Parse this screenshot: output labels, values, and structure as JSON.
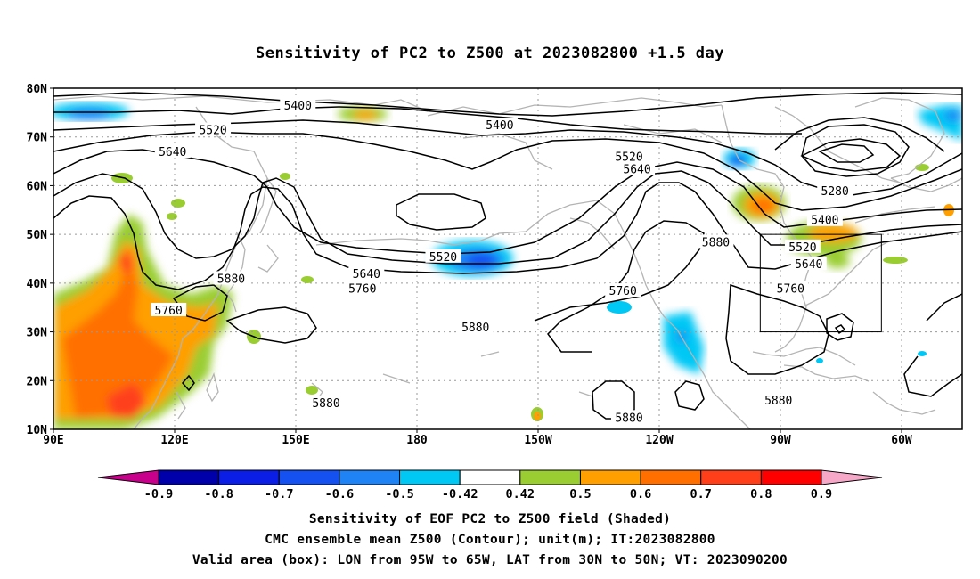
{
  "title": "Sensitivity of PC2 to Z500 at 2023082800 +1.5 day",
  "lat_labels": [
    "80N",
    "70N",
    "60N",
    "50N",
    "40N",
    "30N",
    "20N",
    "10N"
  ],
  "lon_labels": [
    "90E",
    "120E",
    "150E",
    "180",
    "150W",
    "120W",
    "90W",
    "60W"
  ],
  "contour_labels": [
    {
      "text": "5400",
      "lon": 150.5,
      "lat": 76.5
    },
    {
      "text": "5400",
      "lon": -159.5,
      "lat": 72.5
    },
    {
      "text": "5520",
      "lon": 129.5,
      "lat": 71.5
    },
    {
      "text": "5640",
      "lon": 119.5,
      "lat": 67.0
    },
    {
      "text": "5520",
      "lon": -127.5,
      "lat": 66.0
    },
    {
      "text": "5640",
      "lon": -125.5,
      "lat": 63.5
    },
    {
      "text": "5280",
      "lon": -76.5,
      "lat": 59.0
    },
    {
      "text": "5400",
      "lon": -79.0,
      "lat": 53.0
    },
    {
      "text": "5880",
      "lon": -106.0,
      "lat": 48.5
    },
    {
      "text": "5520",
      "lon": -84.5,
      "lat": 47.5
    },
    {
      "text": "5520",
      "lon": -173.5,
      "lat": 45.5
    },
    {
      "text": "5640",
      "lon": -83.0,
      "lat": 44.0
    },
    {
      "text": "5640",
      "lon": -192.5,
      "lat": 42.0
    },
    {
      "text": "5880",
      "lon": 134.0,
      "lat": 41.0
    },
    {
      "text": "5760",
      "lon": -193.5,
      "lat": 39.0
    },
    {
      "text": "5760",
      "lon": -129.0,
      "lat": 38.5
    },
    {
      "text": "5760",
      "lon": -87.5,
      "lat": 39.0
    },
    {
      "text": "5760",
      "lon": 118.5,
      "lat": 34.5
    },
    {
      "text": "5880",
      "lon": -165.5,
      "lat": 31.0
    },
    {
      "text": "5880",
      "lon": -90.5,
      "lat": 16.0
    },
    {
      "text": "5880",
      "lon": 157.5,
      "lat": 15.5
    },
    {
      "text": "5880",
      "lon": -127.5,
      "lat": 12.5
    }
  ],
  "valid_box": {
    "lon_west": -95,
    "lon_east": -65,
    "lat_south": 30,
    "lat_north": 50
  },
  "colorbar": {
    "labels": [
      "-0.9",
      "-0.8",
      "-0.7",
      "-0.6",
      "-0.5",
      "-0.42",
      "0.42",
      "0.5",
      "0.6",
      "0.7",
      "0.8",
      "0.9"
    ],
    "colors": [
      "#0000aa",
      "#0a1ee6",
      "#1550f0",
      "#1f82f5",
      "#00c8f5",
      "#ffffff",
      "#9acd32",
      "#ff9f00",
      "#ff6f00",
      "#ff3f1a",
      "#ff0000"
    ],
    "left_arrow_color": "#c8008c",
    "right_arrow_color": "#f7a8c8"
  },
  "caption": {
    "line1": "Sensitivity of EOF PC2 to Z500 field (Shaded)",
    "line2": "CMC ensemble mean Z500 (Contour); unit(m); IT:2023082800",
    "line3": "Valid area (box): LON from 95W to 65W, LAT from 30N to 50N; VT: 2023090200"
  }
}
